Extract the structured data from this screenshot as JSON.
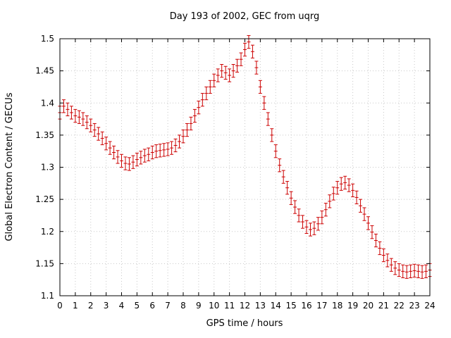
{
  "chart_data": {
    "type": "scatter",
    "style": "errorbars",
    "title": "Day 193 of 2002, GEC from uqrg",
    "xlabel": "GPS time / hours",
    "ylabel": "Global Electron Content / GECUs",
    "xlim": [
      0,
      24
    ],
    "ylim": [
      1.1,
      1.5
    ],
    "grid": true,
    "legend": "none",
    "point_color": "#cc0000",
    "grid_color": "#c8c8c8",
    "border_color": "#000000",
    "xticks": [
      0,
      1,
      2,
      3,
      4,
      5,
      6,
      7,
      8,
      9,
      10,
      11,
      12,
      13,
      14,
      15,
      16,
      17,
      18,
      19,
      20,
      21,
      22,
      23,
      24
    ],
    "xtick_labels": [
      "0",
      "1",
      "2",
      "3",
      "4",
      "5",
      "6",
      "7",
      "8",
      "9",
      "10",
      "11",
      "12",
      "13",
      "14",
      "15",
      "16",
      "17",
      "18",
      "19",
      "20",
      "21",
      "22",
      "23",
      "24"
    ],
    "yticks": [
      1.1,
      1.15,
      1.2,
      1.25,
      1.3,
      1.35,
      1.4,
      1.45,
      1.5
    ],
    "ytick_labels": [
      "1.1",
      "1.15",
      "1.2",
      "1.25",
      "1.3",
      "1.35",
      "1.4",
      "1.45",
      "1.5"
    ],
    "yerr": 0.01,
    "x": [
      0,
      0.25,
      0.5,
      0.75,
      1,
      1.25,
      1.5,
      1.75,
      2,
      2.25,
      2.5,
      2.75,
      3,
      3.25,
      3.5,
      3.75,
      4,
      4.25,
      4.5,
      4.75,
      5,
      5.25,
      5.5,
      5.75,
      6,
      6.25,
      6.5,
      6.75,
      7,
      7.25,
      7.5,
      7.75,
      8,
      8.25,
      8.5,
      8.75,
      9,
      9.25,
      9.5,
      9.75,
      10,
      10.25,
      10.5,
      10.75,
      11,
      11.25,
      11.5,
      11.75,
      12,
      12.25,
      12.5,
      12.75,
      13,
      13.25,
      13.5,
      13.75,
      14,
      14.25,
      14.5,
      14.75,
      15,
      15.25,
      15.5,
      15.75,
      16,
      16.25,
      16.5,
      16.75,
      17,
      17.25,
      17.5,
      17.75,
      18,
      18.25,
      18.5,
      18.75,
      19,
      19.25,
      19.5,
      19.75,
      20,
      20.25,
      20.5,
      20.75,
      21,
      21.25,
      21.5,
      21.75,
      22,
      22.25,
      22.5,
      22.75,
      23,
      23.25,
      23.5,
      23.75,
      24
    ],
    "y": [
      1.385,
      1.395,
      1.39,
      1.385,
      1.38,
      1.378,
      1.375,
      1.37,
      1.365,
      1.358,
      1.352,
      1.345,
      1.337,
      1.33,
      1.323,
      1.316,
      1.31,
      1.306,
      1.305,
      1.308,
      1.312,
      1.315,
      1.318,
      1.32,
      1.323,
      1.325,
      1.326,
      1.327,
      1.328,
      1.33,
      1.334,
      1.34,
      1.348,
      1.358,
      1.368,
      1.38,
      1.393,
      1.405,
      1.415,
      1.425,
      1.435,
      1.443,
      1.45,
      1.447,
      1.443,
      1.45,
      1.458,
      1.468,
      1.483,
      1.495,
      1.48,
      1.455,
      1.425,
      1.4,
      1.375,
      1.35,
      1.325,
      1.303,
      1.285,
      1.268,
      1.252,
      1.238,
      1.225,
      1.215,
      1.207,
      1.203,
      1.205,
      1.212,
      1.222,
      1.234,
      1.247,
      1.259,
      1.268,
      1.274,
      1.276,
      1.272,
      1.264,
      1.253,
      1.24,
      1.227,
      1.213,
      1.199,
      1.186,
      1.174,
      1.163,
      1.155,
      1.148,
      1.143,
      1.14,
      1.138,
      1.137,
      1.138,
      1.139,
      1.138,
      1.137,
      1.138,
      1.14
    ]
  }
}
